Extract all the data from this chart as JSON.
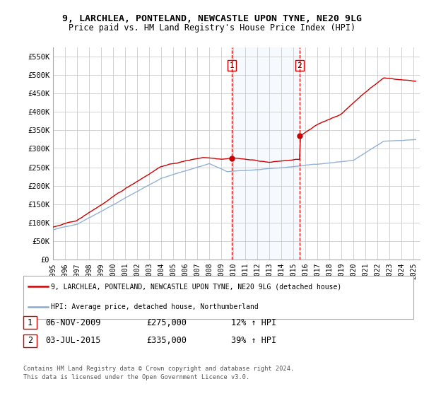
{
  "title_line1": "9, LARCHLEA, PONTELAND, NEWCASTLE UPON TYNE, NE20 9LG",
  "title_line2": "Price paid vs. HM Land Registry's House Price Index (HPI)",
  "ylabel_ticks": [
    "£0",
    "£50K",
    "£100K",
    "£150K",
    "£200K",
    "£250K",
    "£300K",
    "£350K",
    "£400K",
    "£450K",
    "£500K",
    "£550K"
  ],
  "ytick_values": [
    0,
    50000,
    100000,
    150000,
    200000,
    250000,
    300000,
    350000,
    400000,
    450000,
    500000,
    550000
  ],
  "ylim": [
    0,
    575000
  ],
  "xlim_start": 1995.0,
  "xlim_end": 2025.5,
  "sale1_date": 2009.85,
  "sale1_price": 275000,
  "sale2_date": 2015.5,
  "sale2_price": 335000,
  "red_line_color": "#cc0000",
  "blue_line_color": "#88aad0",
  "shade_color": "#ddeeff",
  "dashed_line_color": "#cc0000",
  "legend_label_red": "9, LARCHLEA, PONTELAND, NEWCASTLE UPON TYNE, NE20 9LG (detached house)",
  "legend_label_blue": "HPI: Average price, detached house, Northumberland",
  "table_row1": [
    "1",
    "06-NOV-2009",
    "£275,000",
    "12% ↑ HPI"
  ],
  "table_row2": [
    "2",
    "03-JUL-2015",
    "£335,000",
    "39% ↑ HPI"
  ],
  "footnote": "Contains HM Land Registry data © Crown copyright and database right 2024.\nThis data is licensed under the Open Government Licence v3.0.",
  "bg_color": "#ffffff",
  "grid_color": "#cccccc"
}
